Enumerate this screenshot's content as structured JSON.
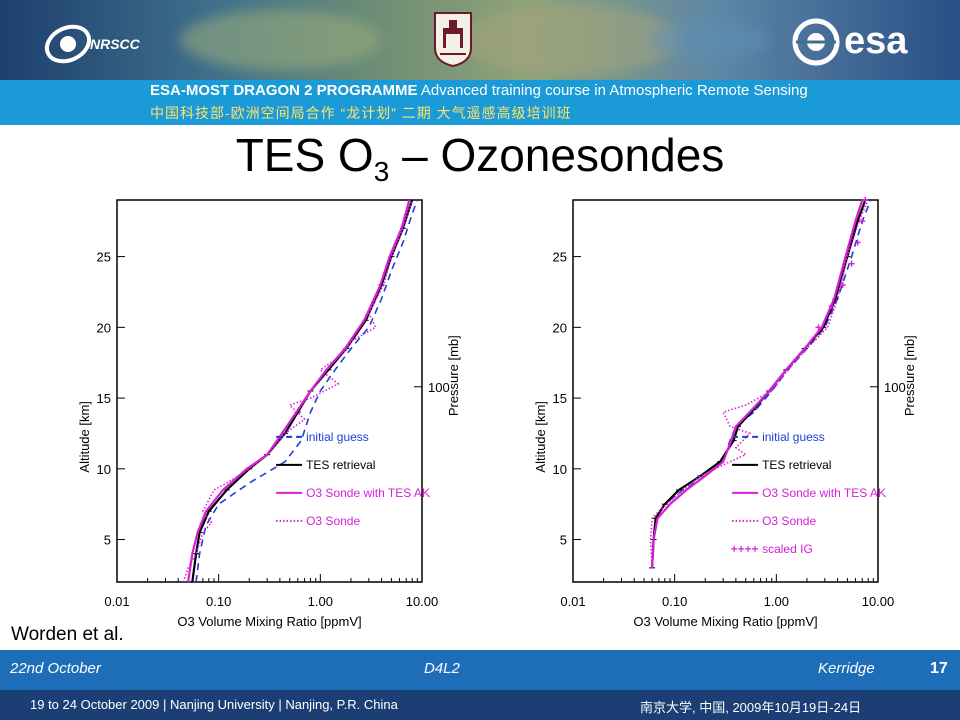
{
  "header": {
    "logo_left": "NRSCC",
    "logo_right": "esa",
    "university_seal": "NANJING UNIVERSITY"
  },
  "banner": {
    "line1_bold": "ESA-MOST DRAGON 2 PROGRAMME",
    "line1_rest": "Advanced training course in Atmospheric Remote Sensing",
    "line2": "中国科技部-欧洲空间局合作 “龙计划” 二期    大气遥感高级培训班"
  },
  "slide": {
    "title_main": "TES O",
    "title_sub": "3",
    "title_rest": " – Ozonesondes",
    "credit": "Worden et al."
  },
  "footer": {
    "date": "22nd October",
    "code": "D4L2",
    "author": "Kerridge",
    "page": "17"
  },
  "bottom_bar": {
    "left": "19 to 24 October 2009 | Nanjing University | Nanjing, P.R. China",
    "right": "南京大学, 中国, 2009年10月19日-24日"
  },
  "chart_data": [
    {
      "type": "line",
      "xlabel": "O3 Volume Mixing Ratio [ppmV]",
      "ylabel": "Altitude [km]",
      "y2label": "Pressure [mb]",
      "x_scale": "log",
      "xlim": [
        0.01,
        10.0
      ],
      "ylim": [
        2,
        29
      ],
      "x_ticks": [
        "0.01",
        "0.10",
        "1.00",
        "10.00"
      ],
      "y_ticks": [
        "5",
        "10",
        "15",
        "20",
        "25"
      ],
      "y2_ticks": [
        "100"
      ],
      "legend": [
        "initial guess",
        "TES retrieval",
        "O3 Sonde with TES AK",
        "O3 Sonde"
      ],
      "series": [
        {
          "name": "initial guess",
          "color": "#1f3fd6",
          "style": "dash",
          "points": [
            [
              0.06,
              2
            ],
            [
              0.065,
              4
            ],
            [
              0.075,
              6
            ],
            [
              0.1,
              7.5
            ],
            [
              0.2,
              9
            ],
            [
              0.45,
              10.5
            ],
            [
              0.65,
              12
            ],
            [
              0.8,
              14
            ],
            [
              1.0,
              15.5
            ],
            [
              1.4,
              17
            ],
            [
              2.0,
              18.5
            ],
            [
              3.0,
              20
            ],
            [
              4.0,
              22
            ],
            [
              5.0,
              24
            ],
            [
              6.5,
              26
            ],
            [
              8.0,
              28
            ],
            [
              9.0,
              29
            ]
          ]
        },
        {
          "name": "TES retrieval",
          "color": "#000000",
          "style": "solid",
          "points": [
            [
              0.055,
              2
            ],
            [
              0.06,
              4
            ],
            [
              0.065,
              5.5
            ],
            [
              0.08,
              7
            ],
            [
              0.12,
              8.5
            ],
            [
              0.2,
              10
            ],
            [
              0.3,
              11
            ],
            [
              0.45,
              12.5
            ],
            [
              0.6,
              14
            ],
            [
              0.8,
              15.5
            ],
            [
              1.2,
              17
            ],
            [
              1.8,
              18.5
            ],
            [
              2.8,
              20.5
            ],
            [
              4.0,
              23
            ],
            [
              5.0,
              25
            ],
            [
              6.5,
              27
            ],
            [
              8.0,
              29
            ]
          ]
        },
        {
          "name": "O3 Sonde with TES AK",
          "color": "#d61fd6",
          "style": "solid",
          "points": [
            [
              0.05,
              2
            ],
            [
              0.055,
              4
            ],
            [
              0.062,
              5.5
            ],
            [
              0.075,
              7
            ],
            [
              0.11,
              8.5
            ],
            [
              0.19,
              10
            ],
            [
              0.3,
              11
            ],
            [
              0.42,
              12.5
            ],
            [
              0.58,
              14
            ],
            [
              0.8,
              15.5
            ],
            [
              1.15,
              17
            ],
            [
              1.75,
              18.5
            ],
            [
              2.7,
              20.5
            ],
            [
              3.9,
              23
            ],
            [
              4.8,
              25
            ],
            [
              6.3,
              27
            ],
            [
              7.5,
              29
            ]
          ]
        },
        {
          "name": "O3 Sonde",
          "color": "#d61fd6",
          "style": "dot",
          "points": [
            [
              0.045,
              2
            ],
            [
              0.05,
              3
            ],
            [
              0.06,
              4
            ],
            [
              0.07,
              5.5
            ],
            [
              0.085,
              6.2
            ],
            [
              0.07,
              7
            ],
            [
              0.09,
              8.5
            ],
            [
              0.12,
              9
            ],
            [
              0.2,
              10
            ],
            [
              0.3,
              11
            ],
            [
              0.45,
              12.5
            ],
            [
              0.7,
              13.5
            ],
            [
              0.5,
              14.5
            ],
            [
              0.8,
              15
            ],
            [
              1.5,
              16
            ],
            [
              1.0,
              17
            ],
            [
              1.6,
              18
            ],
            [
              2.0,
              19
            ],
            [
              3.5,
              20
            ],
            [
              3.0,
              21
            ],
            [
              4.2,
              23
            ],
            [
              5.0,
              25
            ],
            [
              6.5,
              27
            ],
            [
              8.0,
              29
            ]
          ]
        }
      ]
    },
    {
      "type": "line",
      "xlabel": "O3 Volume Mixing Ratio [ppmV]",
      "ylabel": "Altitude [km]",
      "y2label": "Pressure [mb]",
      "x_scale": "log",
      "xlim": [
        0.01,
        10.0
      ],
      "ylim": [
        2,
        29
      ],
      "x_ticks": [
        "0.01",
        "0.10",
        "1.00",
        "10.00"
      ],
      "y_ticks": [
        "5",
        "10",
        "15",
        "20",
        "25"
      ],
      "y2_ticks": [
        "100"
      ],
      "legend": [
        "initial guess",
        "TES retrieval",
        "O3 Sonde with TES AK",
        "O3 Sonde",
        "scaled IG"
      ],
      "series": [
        {
          "name": "initial guess",
          "color": "#1f3fd6",
          "style": "dash",
          "points": [
            [
              0.06,
              3
            ],
            [
              0.062,
              5
            ],
            [
              0.065,
              6.5
            ],
            [
              0.08,
              7.5
            ],
            [
              0.12,
              8.5
            ],
            [
              0.2,
              9.5
            ],
            [
              0.3,
              10.5
            ],
            [
              0.35,
              12
            ],
            [
              0.4,
              13
            ],
            [
              0.6,
              14
            ],
            [
              0.9,
              15.5
            ],
            [
              1.3,
              17
            ],
            [
              2.0,
              18.5
            ],
            [
              3.0,
              20
            ],
            [
              4.0,
              22
            ],
            [
              5.5,
              25
            ],
            [
              7.0,
              27.5
            ],
            [
              8.5,
              29
            ]
          ]
        },
        {
          "name": "TES retrieval",
          "color": "#000000",
          "style": "solid",
          "points": [
            [
              0.06,
              3
            ],
            [
              0.062,
              5
            ],
            [
              0.065,
              6.5
            ],
            [
              0.08,
              7.5
            ],
            [
              0.11,
              8.5
            ],
            [
              0.18,
              9.5
            ],
            [
              0.28,
              10.5
            ],
            [
              0.38,
              12
            ],
            [
              0.42,
              13
            ],
            [
              0.6,
              14.2
            ],
            [
              0.85,
              15.5
            ],
            [
              1.25,
              17
            ],
            [
              1.9,
              18.5
            ],
            [
              2.9,
              20
            ],
            [
              3.8,
              22
            ],
            [
              5.0,
              25
            ],
            [
              6.3,
              27.5
            ],
            [
              7.5,
              29
            ]
          ]
        },
        {
          "name": "O3 Sonde with TES AK",
          "color": "#d61fd6",
          "style": "solid",
          "points": [
            [
              0.06,
              3
            ],
            [
              0.062,
              5
            ],
            [
              0.068,
              6.5
            ],
            [
              0.09,
              7.5
            ],
            [
              0.13,
              8.5
            ],
            [
              0.2,
              9.5
            ],
            [
              0.3,
              10.5
            ],
            [
              0.36,
              12
            ],
            [
              0.4,
              13
            ],
            [
              0.58,
              14.2
            ],
            [
              0.85,
              15.5
            ],
            [
              1.25,
              17
            ],
            [
              1.9,
              18.5
            ],
            [
              2.8,
              20
            ],
            [
              3.7,
              22
            ],
            [
              4.8,
              25
            ],
            [
              6.0,
              27.5
            ],
            [
              7.0,
              29
            ]
          ]
        },
        {
          "name": "O3 Sonde",
          "color": "#d61fd6",
          "style": "dot",
          "points": [
            [
              0.06,
              3
            ],
            [
              0.058,
              5
            ],
            [
              0.06,
              6.5
            ],
            [
              0.07,
              7
            ],
            [
              0.1,
              8
            ],
            [
              0.18,
              9.5
            ],
            [
              0.35,
              10.5
            ],
            [
              0.5,
              11
            ],
            [
              0.4,
              11.5
            ],
            [
              0.55,
              12.5
            ],
            [
              0.35,
              13
            ],
            [
              0.3,
              14
            ],
            [
              0.5,
              14.5
            ],
            [
              0.9,
              15.5
            ],
            [
              1.3,
              17
            ],
            [
              2.0,
              18.5
            ],
            [
              3.2,
              20
            ],
            [
              4.0,
              22
            ],
            [
              5.0,
              25
            ],
            [
              6.5,
              27.5
            ],
            [
              8.0,
              29
            ]
          ]
        },
        {
          "name": "scaled IG",
          "color": "#d61fd6",
          "style": "plus",
          "points": [
            [
              2.6,
              20
            ],
            [
              3.5,
              21.5
            ],
            [
              4.5,
              23
            ],
            [
              5.5,
              24.5
            ],
            [
              6.3,
              26
            ],
            [
              7.0,
              27.5
            ],
            [
              7.5,
              29
            ]
          ]
        }
      ]
    }
  ]
}
